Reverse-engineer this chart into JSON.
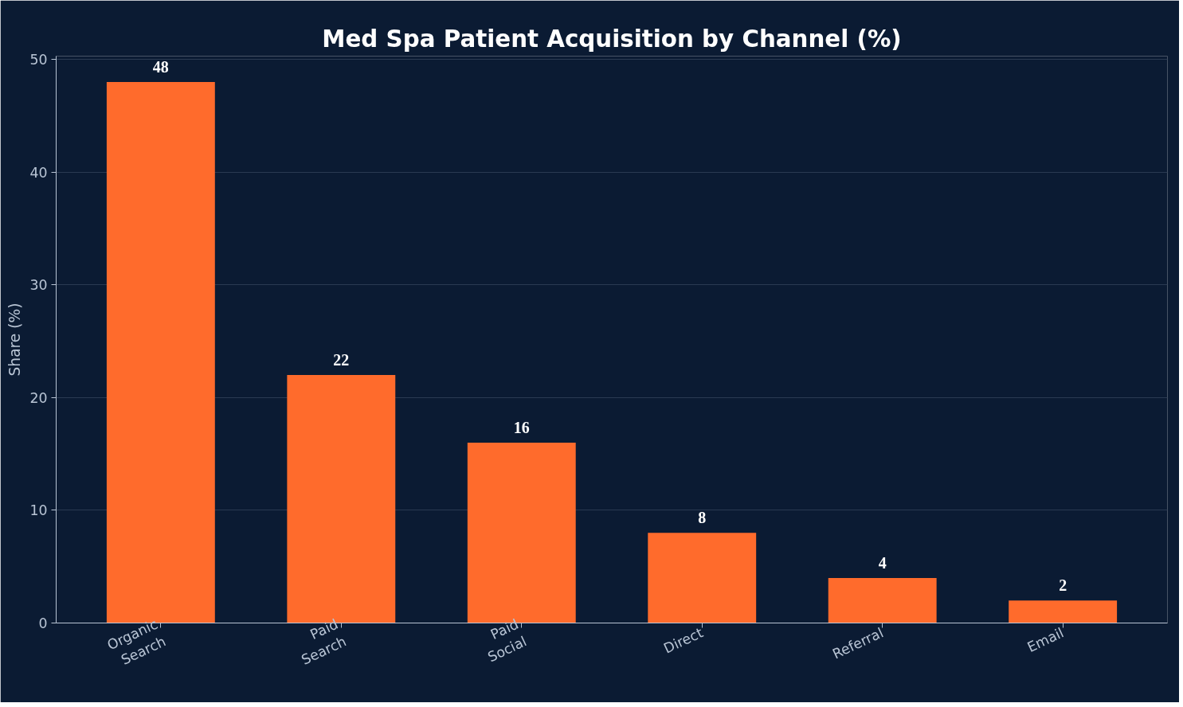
{
  "chart_data": {
    "type": "bar",
    "title": "Med Spa Patient Acquisition by Channel (%)",
    "ylabel": "Share (%)",
    "categories": [
      "Organic\nSearch",
      "Paid\nSearch",
      "Paid\nSocial",
      "Direct",
      "Referral",
      "Email"
    ],
    "values": [
      48,
      22,
      16,
      8,
      4,
      2
    ],
    "color": "#ff6b2c",
    "ylim": [
      0,
      50.3
    ],
    "yticks": [
      0,
      10,
      20,
      30,
      40,
      50
    ],
    "grid": "y",
    "data_labels": true
  }
}
